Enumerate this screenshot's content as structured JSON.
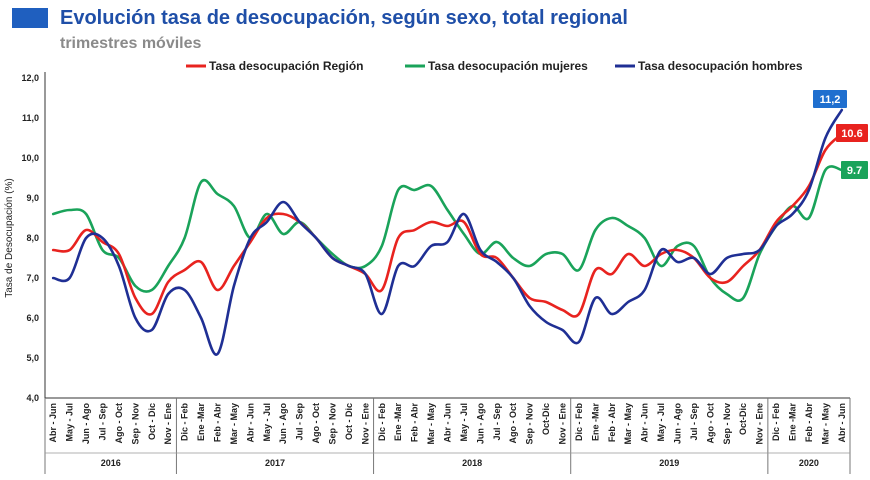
{
  "chart_data": {
    "type": "line",
    "title": "Evolución tasa de desocupación, según sexo, total regional",
    "subtitle": "trimestres móviles",
    "ylabel": "Tasa de Desocupación (%)",
    "ylim": [
      4.0,
      12.0
    ],
    "yticks": [
      "4,0",
      "5,0",
      "6,0",
      "7,0",
      "8,0",
      "9,0",
      "10,0",
      "11,0",
      "12,0"
    ],
    "categories": [
      "Abr - Jun",
      "May - Jul",
      "Jun - Ago",
      "Jul - Sep",
      "Ago - Oct",
      "Sep - Nov",
      "Oct - Dic",
      "Nov - Ene",
      "Dic - Feb",
      "Ene -Mar",
      "Feb - Abr",
      "Mar - May",
      "Abr - Jun",
      "May - Jul",
      "Jun - Ago",
      "Jul - Sep",
      "Ago - Oct",
      "Sep - Nov",
      "Oct - Dic",
      "Nov - Ene",
      "Dic - Feb",
      "Ene -Mar",
      "Feb - Abr",
      "Mar - May",
      "Abr - Jun",
      "May - Jul",
      "Jun - Ago",
      "Jul - Sep",
      "Ago - Oct",
      "Sep - Nov",
      "Oct-Dic",
      "Nov - Ene",
      "Dic - Feb",
      "Ene -Mar",
      "Feb - Abr",
      "Mar - May",
      "Abr - Jun",
      "May - Jul",
      "Jun - Ago",
      "Jul - Sep",
      "Ago - Oct",
      "Sep - Nov",
      "Oct-Dic",
      "Nov - Ene",
      "Dic - Feb",
      "Ene -Mar",
      "Feb - Abr",
      "Mar - May",
      "Abr - Jun"
    ],
    "years": [
      {
        "label": "2016",
        "start": 0,
        "end": 7
      },
      {
        "label": "2017",
        "start": 8,
        "end": 19
      },
      {
        "label": "2018",
        "start": 20,
        "end": 31
      },
      {
        "label": "2019",
        "start": 32,
        "end": 43
      },
      {
        "label": "2020",
        "start": 44,
        "end": 48
      }
    ],
    "series": [
      {
        "name": "Tasa desocupación Región",
        "color": "#e8231f",
        "values": [
          7.7,
          7.7,
          8.2,
          7.9,
          7.6,
          6.5,
          6.1,
          6.9,
          7.2,
          7.4,
          6.7,
          7.3,
          7.9,
          8.5,
          8.6,
          8.4,
          8.0,
          7.5,
          7.3,
          7.1,
          6.7,
          8.0,
          8.2,
          8.4,
          8.3,
          8.4,
          7.6,
          7.5,
          7.0,
          6.5,
          6.4,
          6.2,
          6.1,
          7.2,
          7.1,
          7.6,
          7.3,
          7.6,
          7.7,
          7.5,
          7.0,
          6.9,
          7.3,
          7.7,
          8.4,
          8.8,
          9.3,
          10.2,
          10.6
        ],
        "end_label": "10.6"
      },
      {
        "name": "Tasa desocupación mujeres",
        "color": "#1aa35a",
        "values": [
          8.6,
          8.7,
          8.6,
          7.7,
          7.5,
          6.8,
          6.7,
          7.3,
          8.0,
          9.4,
          9.1,
          8.8,
          8.0,
          8.6,
          8.1,
          8.4,
          8.0,
          7.6,
          7.3,
          7.3,
          7.8,
          9.2,
          9.2,
          9.3,
          8.7,
          8.1,
          7.6,
          7.9,
          7.5,
          7.3,
          7.6,
          7.6,
          7.2,
          8.2,
          8.5,
          8.3,
          8.0,
          7.3,
          7.8,
          7.8,
          7.0,
          6.6,
          6.5,
          7.6,
          8.3,
          8.8,
          8.5,
          9.7,
          9.7
        ],
        "end_label": "9.7"
      },
      {
        "name": "Tasa desocupación hombres",
        "color": "#1f2f94",
        "values": [
          7.0,
          7.0,
          8.0,
          8.0,
          7.3,
          6.0,
          5.7,
          6.6,
          6.7,
          6.0,
          5.1,
          6.8,
          8.0,
          8.4,
          8.9,
          8.4,
          8.0,
          7.5,
          7.3,
          7.1,
          6.1,
          7.3,
          7.3,
          7.8,
          7.9,
          8.6,
          7.7,
          7.4,
          7.0,
          6.3,
          5.9,
          5.7,
          5.4,
          6.5,
          6.1,
          6.4,
          6.7,
          7.7,
          7.4,
          7.5,
          7.1,
          7.5,
          7.6,
          7.7,
          8.3,
          8.6,
          9.2,
          10.5,
          11.2
        ],
        "end_label": "11,2"
      }
    ],
    "legend_position": "top-center"
  },
  "colors": {
    "title": "#1f4fa8",
    "title_square": "#1f5fbf",
    "end_label_blue": "#1f6fcf"
  }
}
